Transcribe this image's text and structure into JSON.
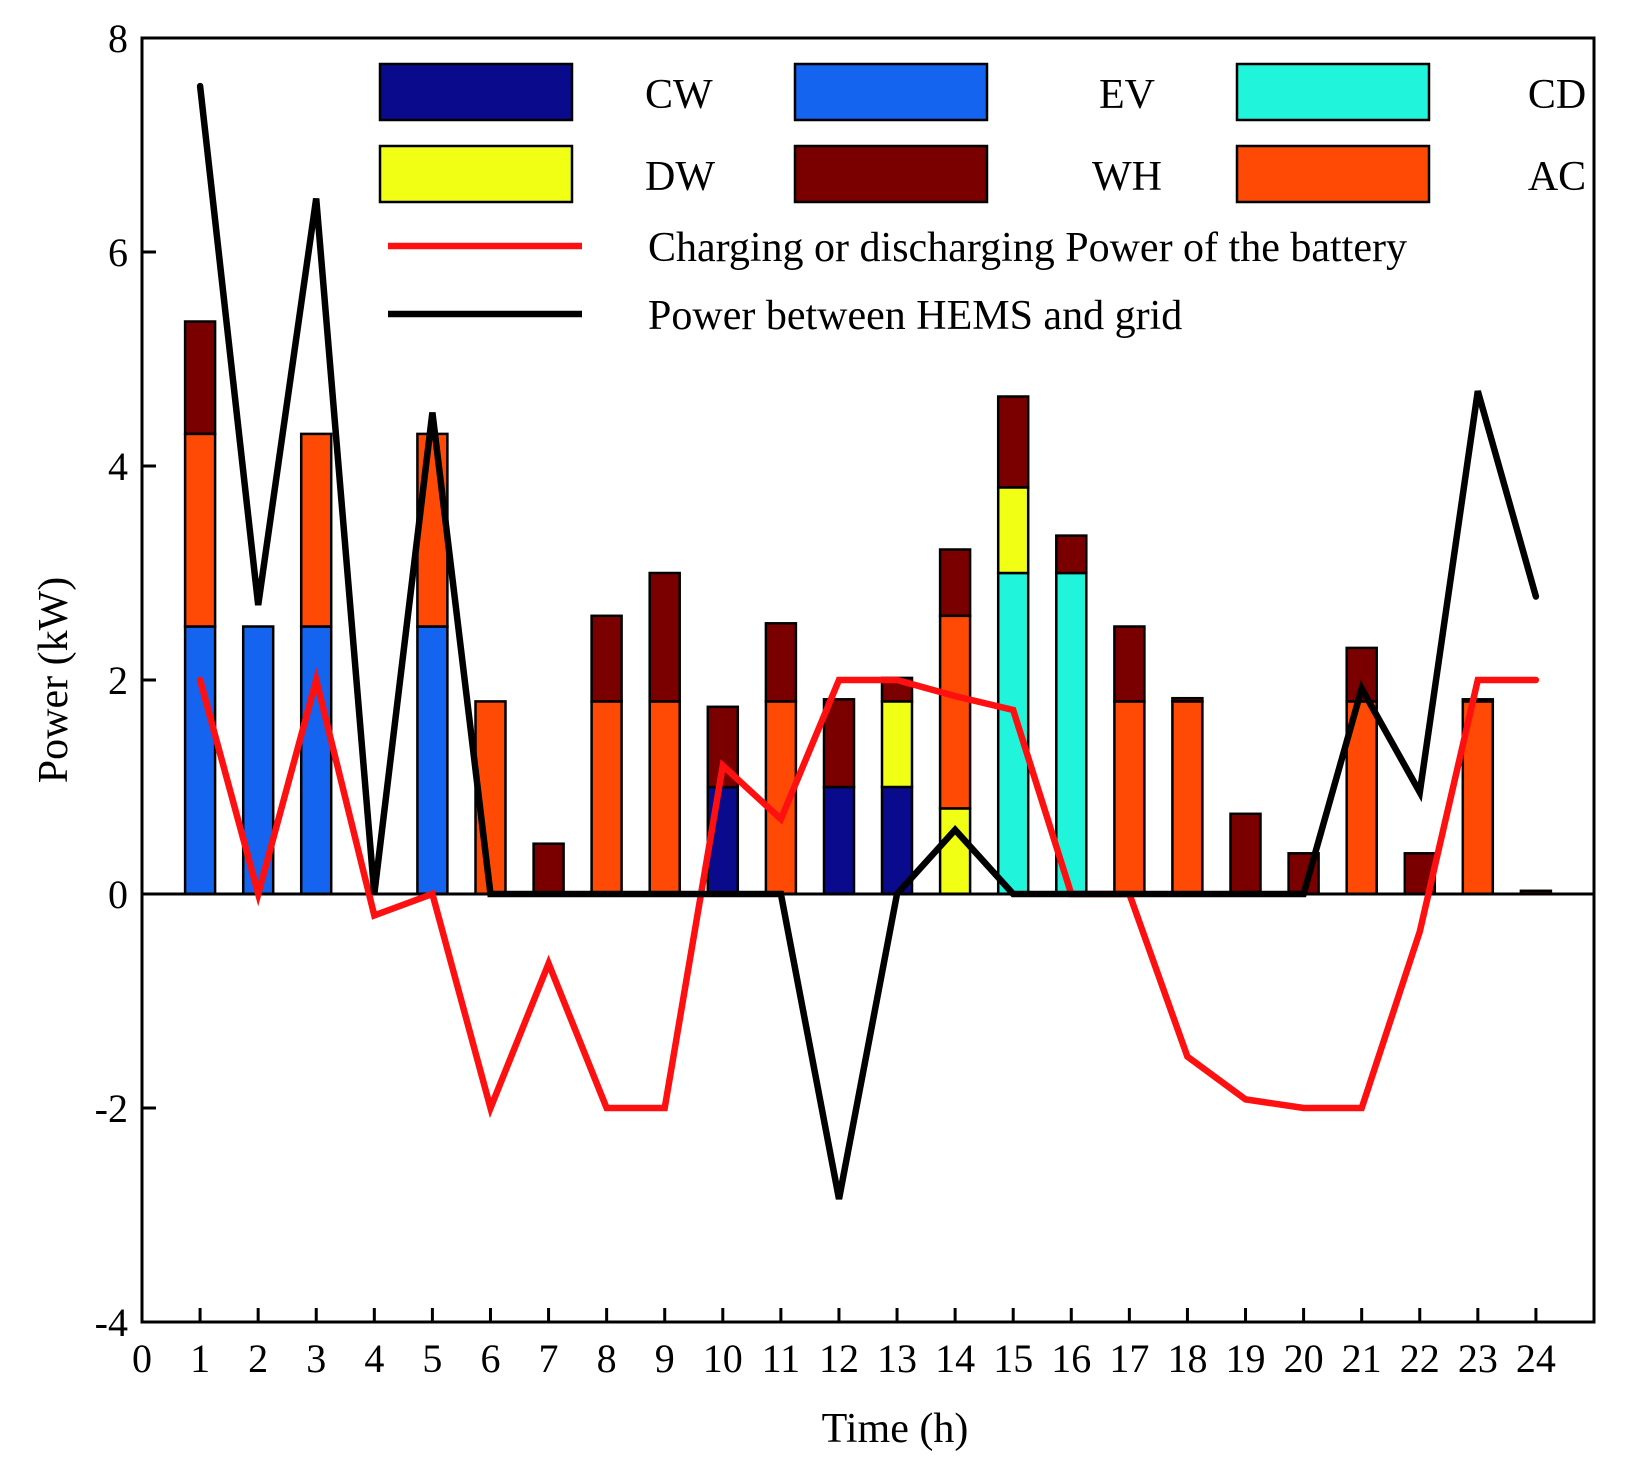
{
  "chart_data": {
    "type": "bar",
    "stacked": true,
    "xlabel": "Time (h)",
    "ylabel": "Power (kW)",
    "xlim": [
      0,
      25
    ],
    "ylim": [
      -4,
      8
    ],
    "x_ticks": [
      0,
      1,
      2,
      3,
      4,
      5,
      6,
      7,
      8,
      9,
      10,
      11,
      12,
      13,
      14,
      15,
      16,
      17,
      18,
      19,
      20,
      21,
      22,
      23,
      24
    ],
    "y_ticks": [
      -4,
      -2,
      0,
      2,
      4,
      6,
      8
    ],
    "x": [
      1,
      2,
      3,
      4,
      5,
      6,
      7,
      8,
      9,
      10,
      11,
      12,
      13,
      14,
      15,
      16,
      17,
      18,
      19,
      20,
      21,
      22,
      23,
      24
    ],
    "bar_series": [
      {
        "name": "CW",
        "color": "#0a0a8c",
        "values": [
          0,
          0,
          0,
          0,
          0,
          0,
          0,
          0,
          0,
          1.0,
          0,
          1.0,
          1.0,
          0,
          0,
          0,
          0,
          0,
          0,
          0,
          0,
          0,
          0,
          0
        ]
      },
      {
        "name": "EV",
        "color": "#1464f0",
        "values": [
          2.5,
          2.5,
          2.5,
          0,
          2.5,
          0,
          0,
          0,
          0,
          0,
          0,
          0,
          0,
          0,
          0,
          0,
          0,
          0,
          0,
          0,
          0,
          0,
          0,
          0
        ]
      },
      {
        "name": "CD",
        "color": "#20f5dc",
        "values": [
          0,
          0,
          0,
          0,
          0,
          0,
          0,
          0,
          0,
          0,
          0,
          0,
          0,
          0,
          3.0,
          3.0,
          0,
          0,
          0,
          0,
          0,
          0,
          0,
          0
        ]
      },
      {
        "name": "DW",
        "color": "#f0ff14",
        "values": [
          0,
          0,
          0,
          0,
          0,
          0,
          0,
          0,
          0,
          0,
          0,
          0,
          0.8,
          0.8,
          0.8,
          0,
          0,
          0,
          0,
          0,
          0,
          0,
          0,
          0
        ]
      },
      {
        "name": "AC",
        "color": "#ff4a05",
        "values": [
          1.8,
          0,
          1.8,
          0,
          1.8,
          1.8,
          0,
          1.8,
          1.8,
          0,
          1.8,
          0,
          0,
          1.8,
          0,
          0,
          1.8,
          1.8,
          0,
          0,
          1.8,
          0,
          1.8,
          0
        ]
      },
      {
        "name": "WH",
        "color": "#7a0000",
        "values": [
          1.05,
          0,
          0,
          0,
          0,
          0,
          0.47,
          0.8,
          1.2,
          0.75,
          0.73,
          0.82,
          0.22,
          0.62,
          0.85,
          0.35,
          0.7,
          0.03,
          0.75,
          0.38,
          0.5,
          0.38,
          0.02,
          0.03
        ]
      }
    ],
    "line_series": [
      {
        "name": "Charging or discharging Power of the battery",
        "color": "#ff1010",
        "values": [
          2.0,
          0,
          2.0,
          -0.2,
          0,
          -2.0,
          -0.65,
          -2.0,
          -2.0,
          1.2,
          0.7,
          2.0,
          2.0,
          1.85,
          1.72,
          0,
          0,
          -1.52,
          -1.92,
          -2.0,
          -2.0,
          -0.35,
          2.0,
          2.0
        ]
      },
      {
        "name": "Power between HEMS and grid",
        "color": "#000000",
        "values": [
          7.55,
          2.7,
          6.5,
          0,
          4.5,
          0,
          0,
          0,
          0,
          0,
          0,
          -2.85,
          0,
          0.6,
          0,
          0,
          0,
          0,
          0,
          0,
          1.92,
          0.95,
          4.7,
          2.78
        ]
      }
    ],
    "legend": {
      "bar_entries": [
        "CW",
        "EV",
        "CD",
        "DW",
        "WH",
        "AC"
      ],
      "line_entries": [
        "Charging or discharging Power of the battery",
        "Power between HEMS and grid"
      ],
      "placement": "top-right"
    }
  }
}
